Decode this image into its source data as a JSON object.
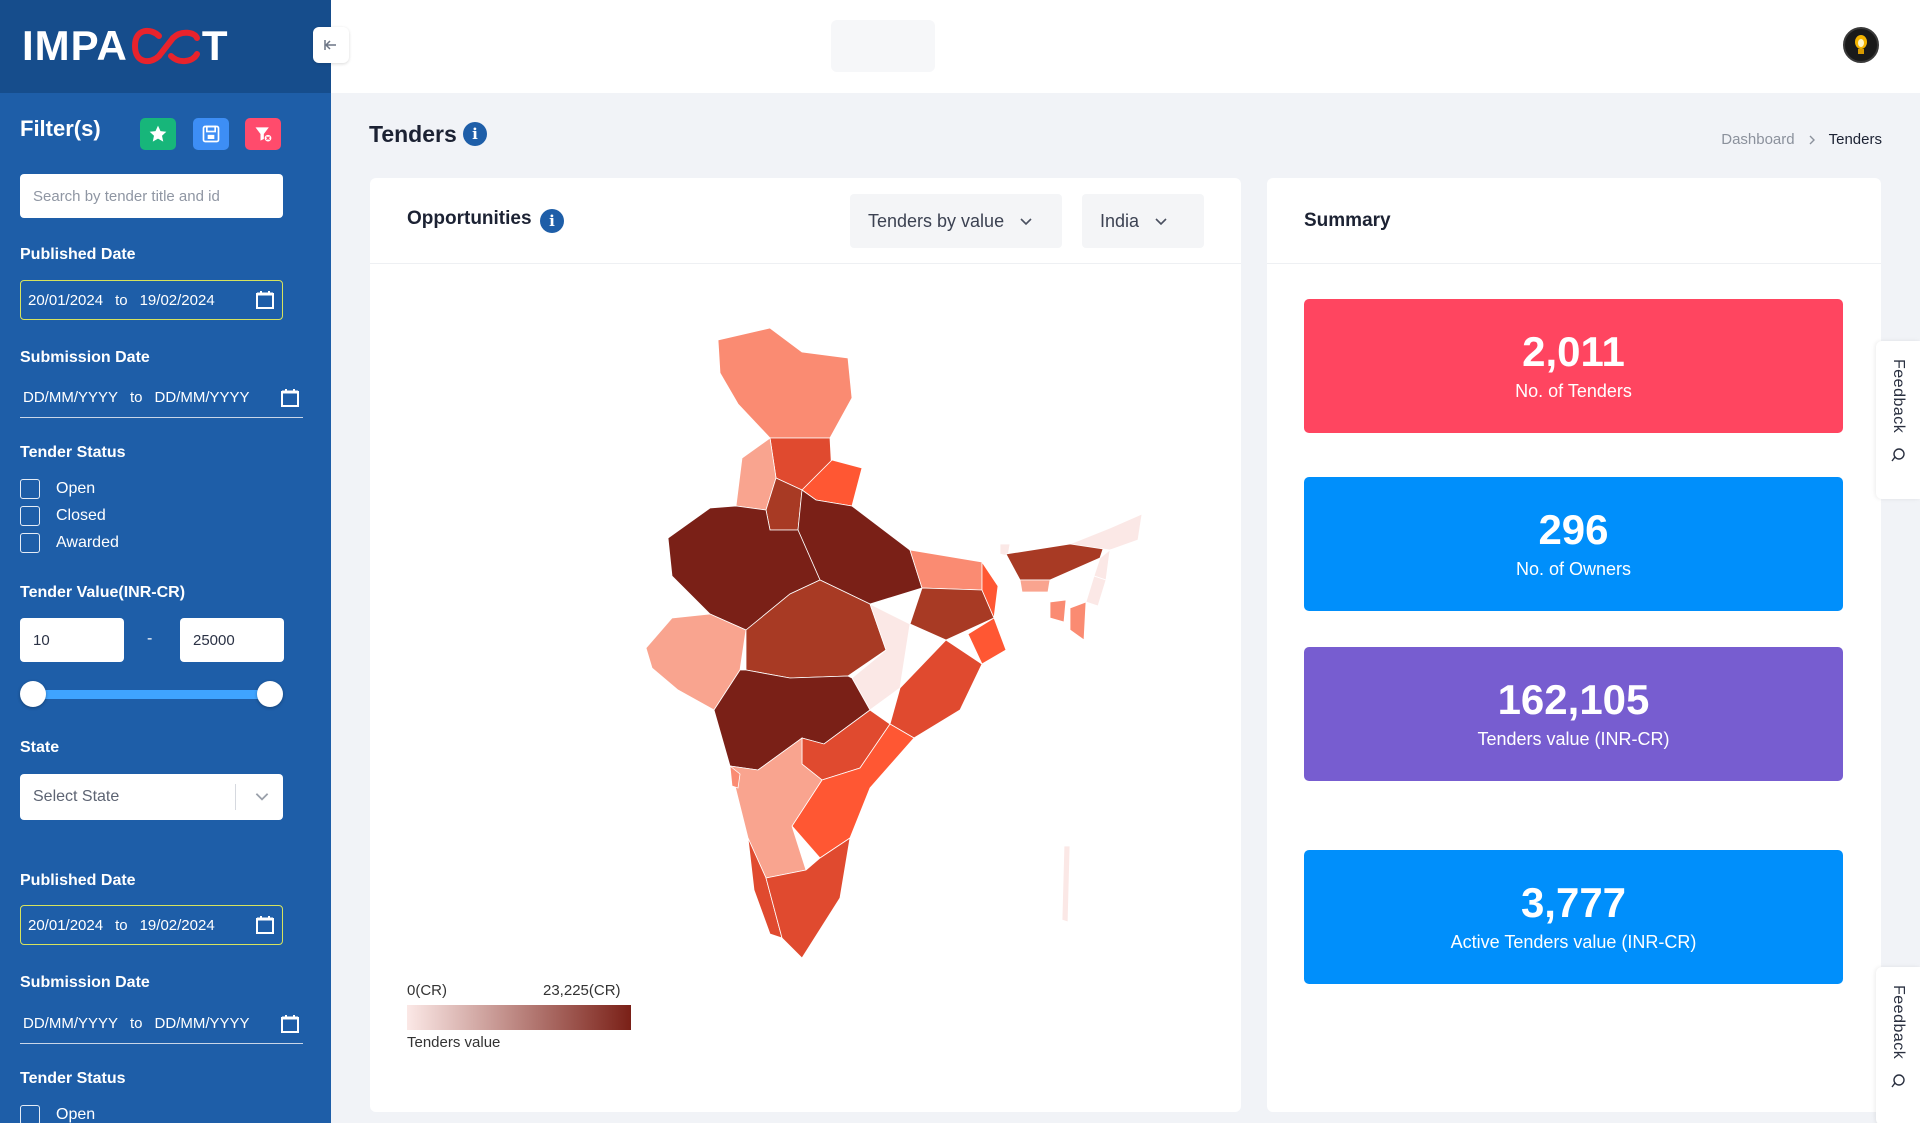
{
  "app": {
    "logo_left": "IMPA",
    "logo_right": "T"
  },
  "sidebar": {
    "filters_title": "Filter(s)",
    "search_placeholder": "Search by tender title and id",
    "published_date_label": "Published Date",
    "published_from": "20/01/2024",
    "published_to": "19/02/2024",
    "date_separator": "to",
    "submission_date_label": "Submission Date",
    "submission_from": "DD/MM/YYYY",
    "submission_to": "DD/MM/YYYY",
    "tender_status_label": "Tender Status",
    "statuses": [
      "Open",
      "Closed",
      "Awarded"
    ],
    "tender_value_label": "Tender Value(INR-CR)",
    "value_min": "10",
    "value_max": "25000",
    "range_dash": "-",
    "state_label": "State",
    "state_placeholder": "Select State"
  },
  "header": {
    "page_title": "Tenders",
    "breadcrumb": [
      "Dashboard",
      "Tenders"
    ],
    "info_glyph": "i"
  },
  "opportunities": {
    "title": "Opportunities",
    "metric_dropdown": "Tenders by value",
    "region_dropdown": "India",
    "legend_min": "0(CR)",
    "legend_max": "23,225(CR)",
    "legend_caption": "Tenders value",
    "color_scale": [
      "#fbe8e6",
      "#f9a48f",
      "#fa8b72",
      "#ff5733",
      "#e04a2f",
      "#a83a24",
      "#7a2017"
    ]
  },
  "summary": {
    "title": "Summary",
    "stats": [
      {
        "value": "2,011",
        "label": "No. of Tenders",
        "color": "#ff4560"
      },
      {
        "value": "296",
        "label": "No. of Owners",
        "color": "#008ffb"
      },
      {
        "value": "162,105",
        "label": "Tenders value (INR-CR)",
        "color": "#775dd0"
      },
      {
        "value": "3,777",
        "label": "Active Tenders value (INR-CR)",
        "color": "#008ffb"
      }
    ]
  },
  "feedback_label": "Feedback"
}
